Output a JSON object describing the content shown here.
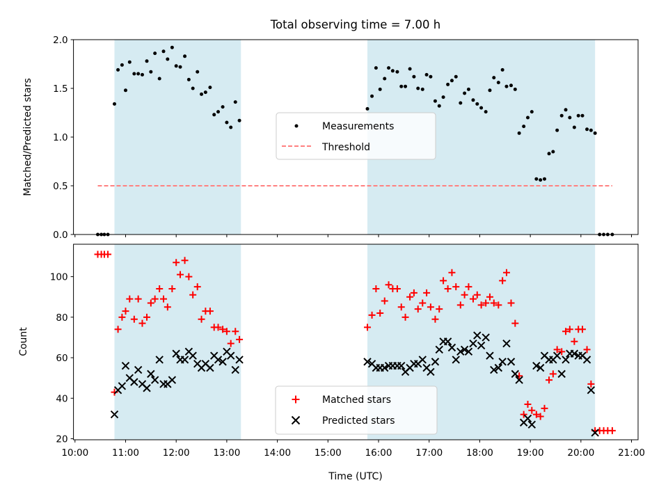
{
  "chart_data": {
    "type": "scatter",
    "title": "Total observing time = 7.00 h",
    "xlabel": "Time (UTC)",
    "x_ticks": [
      "10:00",
      "11:00",
      "12:00",
      "13:00",
      "14:00",
      "15:00",
      "16:00",
      "17:00",
      "18:00",
      "19:00",
      "20:00",
      "21:00"
    ],
    "x_range_hours": [
      9.97,
      21.13
    ],
    "shaded_intervals_hours": [
      [
        10.78,
        13.28
      ],
      [
        15.78,
        20.28
      ]
    ],
    "grid": false,
    "colors": {
      "shade": "#add8e6",
      "measurements": "#000000",
      "threshold": "#ff8080",
      "matched": "#ff0000",
      "predicted": "#000000"
    },
    "top_panel": {
      "ylabel": "Matched/Predicted stars",
      "ylim": [
        0,
        2.0
      ],
      "y_ticks": [
        "0.0",
        "0.5",
        "1.0",
        "1.5",
        "2.0"
      ],
      "legend": {
        "placement": "center",
        "entries": [
          "Measurements",
          "Threshold"
        ]
      },
      "threshold": {
        "y": 0.5,
        "x_start": 10.45,
        "x_end": 20.62
      },
      "measurements": [
        [
          10.45,
          0.0
        ],
        [
          10.52,
          0.0
        ],
        [
          10.58,
          0.0
        ],
        [
          10.65,
          0.0
        ],
        [
          10.78,
          1.34
        ],
        [
          10.85,
          1.69
        ],
        [
          10.93,
          1.74
        ],
        [
          11.0,
          1.48
        ],
        [
          11.08,
          1.77
        ],
        [
          11.17,
          1.65
        ],
        [
          11.25,
          1.65
        ],
        [
          11.33,
          1.64
        ],
        [
          11.42,
          1.78
        ],
        [
          11.5,
          1.67
        ],
        [
          11.58,
          1.86
        ],
        [
          11.67,
          1.6
        ],
        [
          11.75,
          1.88
        ],
        [
          11.83,
          1.8
        ],
        [
          11.92,
          1.92
        ],
        [
          12.0,
          1.73
        ],
        [
          12.08,
          1.72
        ],
        [
          12.17,
          1.83
        ],
        [
          12.25,
          1.59
        ],
        [
          12.33,
          1.5
        ],
        [
          12.42,
          1.67
        ],
        [
          12.5,
          1.44
        ],
        [
          12.58,
          1.46
        ],
        [
          12.67,
          1.51
        ],
        [
          12.75,
          1.23
        ],
        [
          12.83,
          1.26
        ],
        [
          12.92,
          1.31
        ],
        [
          13.0,
          1.15
        ],
        [
          13.08,
          1.1
        ],
        [
          13.17,
          1.36
        ],
        [
          13.25,
          1.17
        ],
        [
          15.78,
          1.29
        ],
        [
          15.87,
          1.42
        ],
        [
          15.95,
          1.71
        ],
        [
          16.03,
          1.49
        ],
        [
          16.12,
          1.6
        ],
        [
          16.2,
          1.71
        ],
        [
          16.28,
          1.68
        ],
        [
          16.37,
          1.67
        ],
        [
          16.45,
          1.52
        ],
        [
          16.53,
          1.52
        ],
        [
          16.62,
          1.7
        ],
        [
          16.7,
          1.62
        ],
        [
          16.78,
          1.5
        ],
        [
          16.87,
          1.49
        ],
        [
          16.95,
          1.64
        ],
        [
          17.03,
          1.62
        ],
        [
          17.12,
          1.37
        ],
        [
          17.2,
          1.32
        ],
        [
          17.28,
          1.41
        ],
        [
          17.37,
          1.54
        ],
        [
          17.45,
          1.58
        ],
        [
          17.53,
          1.62
        ],
        [
          17.62,
          1.35
        ],
        [
          17.7,
          1.45
        ],
        [
          17.78,
          1.49
        ],
        [
          17.87,
          1.38
        ],
        [
          17.95,
          1.34
        ],
        [
          18.03,
          1.3
        ],
        [
          18.12,
          1.26
        ],
        [
          18.2,
          1.48
        ],
        [
          18.28,
          1.61
        ],
        [
          18.37,
          1.56
        ],
        [
          18.45,
          1.69
        ],
        [
          18.53,
          1.52
        ],
        [
          18.62,
          1.53
        ],
        [
          18.7,
          1.49
        ],
        [
          18.78,
          1.04
        ],
        [
          18.87,
          1.11
        ],
        [
          18.95,
          1.2
        ],
        [
          19.03,
          1.26
        ],
        [
          19.12,
          0.57
        ],
        [
          19.2,
          0.56
        ],
        [
          19.28,
          0.57
        ],
        [
          19.37,
          0.83
        ],
        [
          19.45,
          0.85
        ],
        [
          19.53,
          1.07
        ],
        [
          19.62,
          1.22
        ],
        [
          19.7,
          1.28
        ],
        [
          19.78,
          1.2
        ],
        [
          19.87,
          1.1
        ],
        [
          19.95,
          1.22
        ],
        [
          20.03,
          1.22
        ],
        [
          20.12,
          1.08
        ],
        [
          20.2,
          1.07
        ],
        [
          20.28,
          1.04
        ],
        [
          20.37,
          0.0
        ],
        [
          20.45,
          0.0
        ],
        [
          20.53,
          0.0
        ],
        [
          20.62,
          0.0
        ]
      ]
    },
    "bottom_panel": {
      "ylabel": "Count",
      "ylim": [
        19.5,
        116
      ],
      "y_ticks": [
        "20",
        "40",
        "60",
        "80",
        "100"
      ],
      "legend": {
        "placement": "lower center",
        "entries": [
          "Matched stars",
          "Predicted stars"
        ]
      },
      "matched": [
        [
          10.45,
          111
        ],
        [
          10.52,
          111
        ],
        [
          10.58,
          111
        ],
        [
          10.65,
          111
        ],
        [
          10.78,
          43
        ],
        [
          10.85,
          74
        ],
        [
          10.93,
          80
        ],
        [
          11.0,
          83
        ],
        [
          11.08,
          89
        ],
        [
          11.17,
          79
        ],
        [
          11.25,
          89
        ],
        [
          11.33,
          77
        ],
        [
          11.42,
          80
        ],
        [
          11.5,
          87
        ],
        [
          11.58,
          89
        ],
        [
          11.67,
          94
        ],
        [
          11.75,
          89
        ],
        [
          11.83,
          85
        ],
        [
          11.92,
          94
        ],
        [
          12.0,
          107
        ],
        [
          12.08,
          101
        ],
        [
          12.17,
          108
        ],
        [
          12.25,
          100
        ],
        [
          12.33,
          91
        ],
        [
          12.42,
          95
        ],
        [
          12.5,
          79
        ],
        [
          12.58,
          83
        ],
        [
          12.67,
          83
        ],
        [
          12.75,
          75
        ],
        [
          12.83,
          75
        ],
        [
          12.92,
          74
        ],
        [
          13.0,
          73
        ],
        [
          13.08,
          67
        ],
        [
          13.17,
          73
        ],
        [
          13.25,
          69
        ],
        [
          15.78,
          75
        ],
        [
          15.87,
          81
        ],
        [
          15.95,
          94
        ],
        [
          16.03,
          82
        ],
        [
          16.12,
          88
        ],
        [
          16.2,
          96
        ],
        [
          16.28,
          94
        ],
        [
          16.37,
          94
        ],
        [
          16.45,
          85
        ],
        [
          16.53,
          80
        ],
        [
          16.62,
          90
        ],
        [
          16.7,
          92
        ],
        [
          16.78,
          84
        ],
        [
          16.87,
          87
        ],
        [
          16.95,
          92
        ],
        [
          17.03,
          85
        ],
        [
          17.12,
          79
        ],
        [
          17.2,
          84
        ],
        [
          17.28,
          98
        ],
        [
          17.37,
          94
        ],
        [
          17.45,
          102
        ],
        [
          17.53,
          95
        ],
        [
          17.62,
          86
        ],
        [
          17.7,
          91
        ],
        [
          17.78,
          95
        ],
        [
          17.87,
          89
        ],
        [
          17.95,
          91
        ],
        [
          18.03,
          86
        ],
        [
          18.12,
          87
        ],
        [
          18.2,
          90
        ],
        [
          18.28,
          87
        ],
        [
          18.37,
          86
        ],
        [
          18.45,
          98
        ],
        [
          18.53,
          102
        ],
        [
          18.62,
          87
        ],
        [
          18.7,
          77
        ],
        [
          18.78,
          51
        ],
        [
          18.87,
          32
        ],
        [
          18.95,
          37
        ],
        [
          19.03,
          34
        ],
        [
          19.12,
          32
        ],
        [
          19.2,
          31
        ],
        [
          19.28,
          35
        ],
        [
          19.37,
          49
        ],
        [
          19.45,
          52
        ],
        [
          19.53,
          64
        ],
        [
          19.62,
          63
        ],
        [
          19.7,
          73
        ],
        [
          19.78,
          74
        ],
        [
          19.87,
          68
        ],
        [
          19.95,
          74
        ],
        [
          20.03,
          74
        ],
        [
          20.12,
          64
        ],
        [
          20.2,
          47
        ],
        [
          20.28,
          24
        ],
        [
          20.37,
          24
        ],
        [
          20.45,
          24
        ],
        [
          20.53,
          24
        ],
        [
          20.62,
          24
        ]
      ],
      "predicted": [
        [
          10.78,
          32
        ],
        [
          10.85,
          44
        ],
        [
          10.93,
          46
        ],
        [
          11.0,
          56
        ],
        [
          11.08,
          50
        ],
        [
          11.17,
          48
        ],
        [
          11.25,
          54
        ],
        [
          11.33,
          47
        ],
        [
          11.42,
          45
        ],
        [
          11.5,
          52
        ],
        [
          11.58,
          49
        ],
        [
          11.67,
          59
        ],
        [
          11.75,
          47
        ],
        [
          11.83,
          47
        ],
        [
          11.92,
          49
        ],
        [
          12.0,
          62
        ],
        [
          12.08,
          59
        ],
        [
          12.17,
          59
        ],
        [
          12.25,
          63
        ],
        [
          12.33,
          61
        ],
        [
          12.42,
          57
        ],
        [
          12.5,
          55
        ],
        [
          12.58,
          57
        ],
        [
          12.67,
          55
        ],
        [
          12.75,
          61
        ],
        [
          12.83,
          59
        ],
        [
          12.92,
          58
        ],
        [
          13.0,
          63
        ],
        [
          13.08,
          61
        ],
        [
          13.17,
          54
        ],
        [
          13.25,
          59
        ],
        [
          15.78,
          58
        ],
        [
          15.87,
          57
        ],
        [
          15.95,
          55
        ],
        [
          16.03,
          55
        ],
        [
          16.12,
          55
        ],
        [
          16.2,
          56
        ],
        [
          16.28,
          56
        ],
        [
          16.37,
          56
        ],
        [
          16.45,
          56
        ],
        [
          16.53,
          53
        ],
        [
          16.62,
          55
        ],
        [
          16.7,
          57
        ],
        [
          16.78,
          57
        ],
        [
          16.87,
          59
        ],
        [
          16.95,
          55
        ],
        [
          17.03,
          53
        ],
        [
          17.12,
          58
        ],
        [
          17.2,
          64
        ],
        [
          17.28,
          68
        ],
        [
          17.37,
          68
        ],
        [
          17.45,
          65
        ],
        [
          17.53,
          59
        ],
        [
          17.62,
          63
        ],
        [
          17.7,
          64
        ],
        [
          17.78,
          63
        ],
        [
          17.87,
          67
        ],
        [
          17.95,
          71
        ],
        [
          18.03,
          66
        ],
        [
          18.12,
          70
        ],
        [
          18.2,
          61
        ],
        [
          18.28,
          54
        ],
        [
          18.37,
          55
        ],
        [
          18.45,
          58
        ],
        [
          18.53,
          67
        ],
        [
          18.62,
          58
        ],
        [
          18.7,
          52
        ],
        [
          18.78,
          49
        ],
        [
          18.87,
          28
        ],
        [
          18.95,
          30
        ],
        [
          19.03,
          27
        ],
        [
          19.12,
          56
        ],
        [
          19.2,
          55
        ],
        [
          19.28,
          61
        ],
        [
          19.37,
          59
        ],
        [
          19.45,
          59
        ],
        [
          19.53,
          61
        ],
        [
          19.62,
          52
        ],
        [
          19.7,
          59
        ],
        [
          19.78,
          62
        ],
        [
          19.87,
          62
        ],
        [
          19.95,
          61
        ],
        [
          20.03,
          61
        ],
        [
          20.12,
          59
        ],
        [
          20.2,
          44
        ],
        [
          20.28,
          23
        ]
      ]
    }
  }
}
